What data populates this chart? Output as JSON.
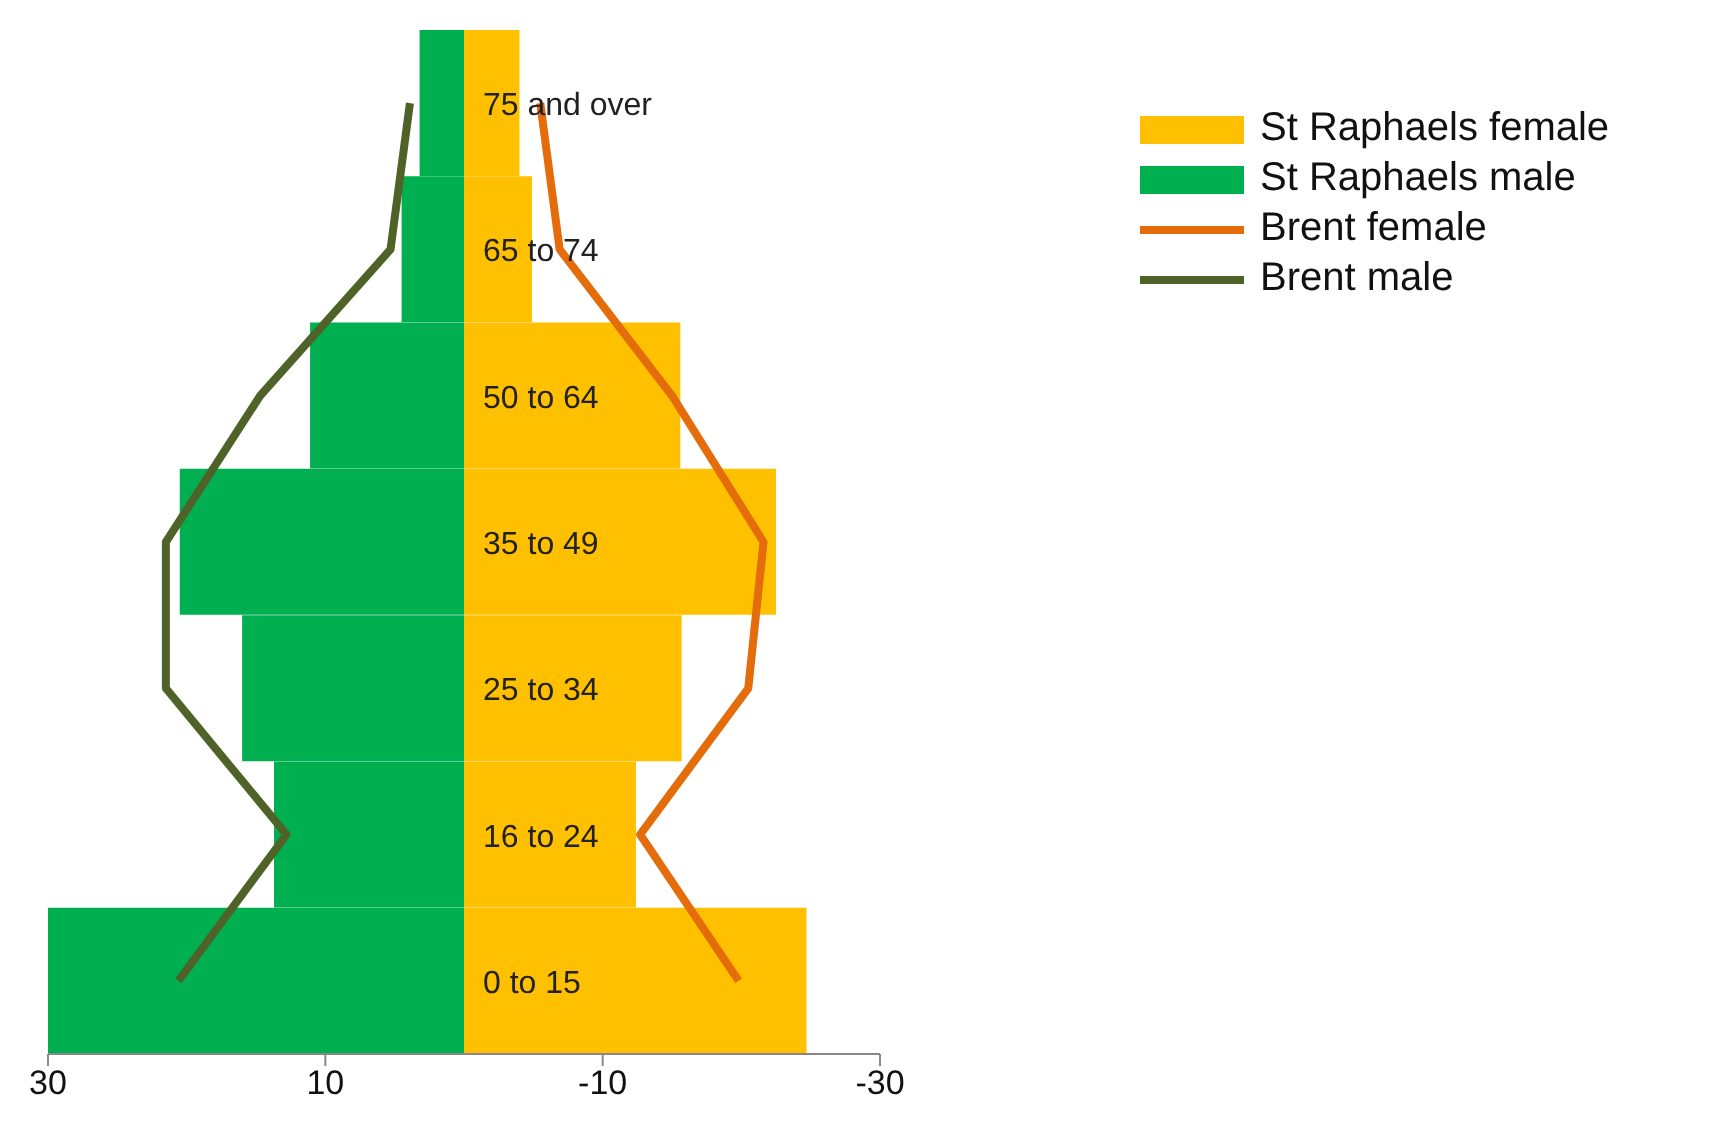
{
  "chart_data": {
    "type": "bar",
    "orientation": "horizontal",
    "categories": [
      "75 and over",
      "65 to 74",
      "50 to 64",
      "35 to 49",
      "25 to 34",
      "16 to 24",
      "0 to 15"
    ],
    "series": [
      {
        "name": "St Raphaels female",
        "color": "#ffc000",
        "values": [
          -4.0,
          -4.9,
          -15.6,
          -22.5,
          -15.7,
          -12.4,
          -24.7
        ]
      },
      {
        "name": "St Raphaels male",
        "color": "#00b050",
        "values": [
          3.2,
          4.5,
          11.1,
          20.5,
          16.0,
          13.7,
          30.0
        ]
      },
      {
        "name": "Brent female",
        "type": "line",
        "color": "#e46c0a",
        "values": [
          -5.5,
          -6.9,
          -15.0,
          -21.6,
          -20.5,
          -12.7,
          -19.8
        ]
      },
      {
        "name": "Brent male",
        "type": "line",
        "color": "#4f6228",
        "values": [
          3.9,
          5.3,
          14.7,
          21.5,
          21.5,
          12.8,
          20.6
        ]
      }
    ],
    "xlim": [
      30,
      -30
    ],
    "xticks": [
      30,
      10,
      -10,
      -30
    ],
    "stacked": true,
    "legend": "top right",
    "marker": "none",
    "line_style": "solid"
  }
}
